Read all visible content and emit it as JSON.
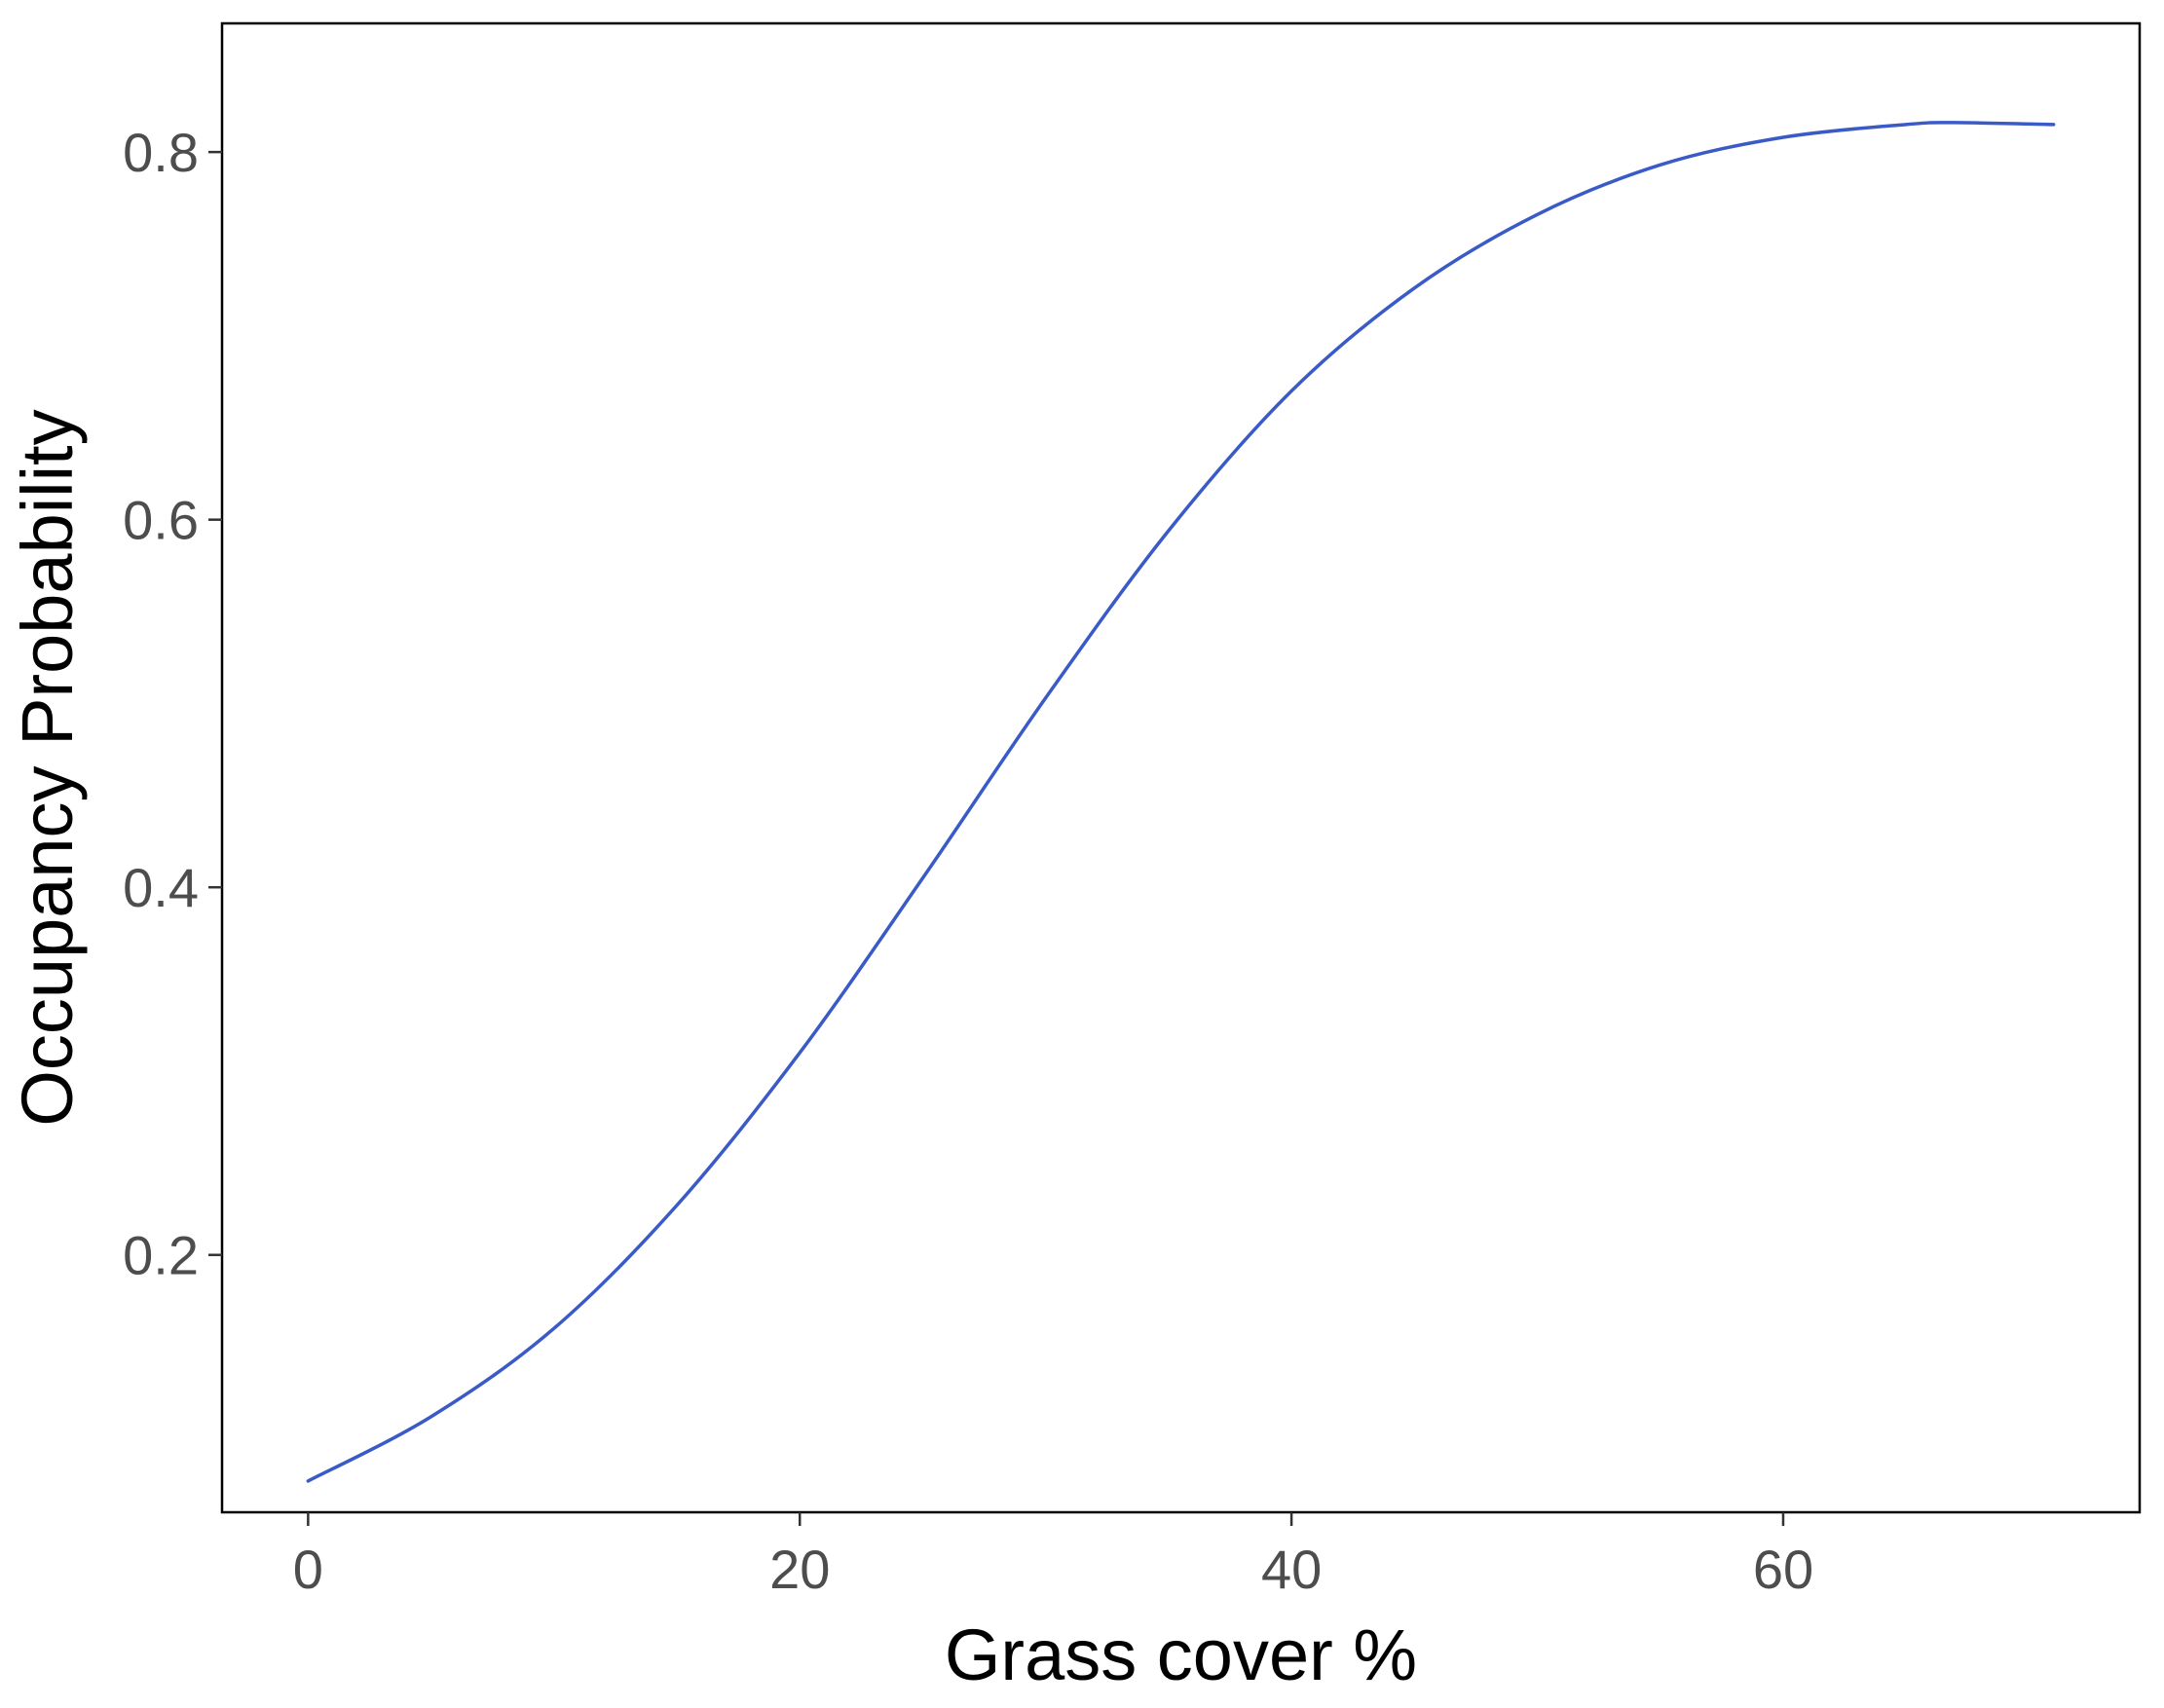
{
  "chart_data": {
    "type": "line",
    "title": "",
    "xlabel": "Grass cover %",
    "ylabel": "Occupancy Probability",
    "xlim": [
      -3.5,
      74.5
    ],
    "ylim": [
      0.06,
      0.87
    ],
    "x_ticks": [
      0,
      20,
      40,
      60
    ],
    "x_tick_labels": [
      "0",
      "20",
      "40",
      "60"
    ],
    "y_ticks": [
      0.2,
      0.4,
      0.6,
      0.8
    ],
    "y_tick_labels": [
      "0.2",
      "0.4",
      "0.6",
      "0.8"
    ],
    "grid": false,
    "series": [
      {
        "color": "#3a5bc7",
        "x": [
          0,
          5,
          10,
          15,
          20,
          25,
          30,
          35,
          40,
          45,
          50,
          55,
          60,
          65,
          67,
          71
        ],
        "y": [
          0.077,
          0.112,
          0.16,
          0.227,
          0.31,
          0.405,
          0.503,
          0.594,
          0.67,
          0.726,
          0.766,
          0.793,
          0.808,
          0.815,
          0.816,
          0.815
        ]
      }
    ]
  }
}
